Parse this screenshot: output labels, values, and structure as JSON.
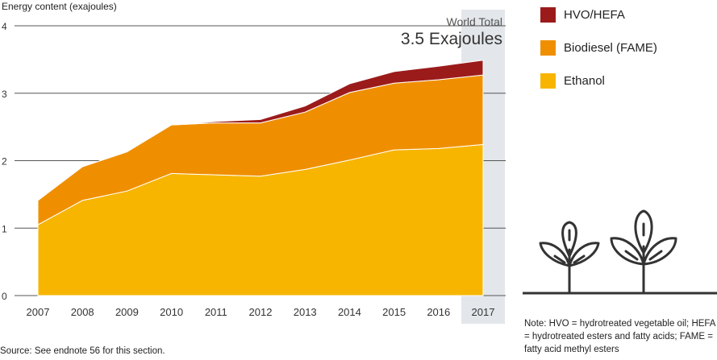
{
  "chart_data": {
    "type": "area",
    "stacked": true,
    "ylabel": "Energy content (exajoules)",
    "xlabel": "",
    "ylim": [
      0,
      4
    ],
    "yticks": [
      "0",
      "1",
      "2",
      "3",
      "4"
    ],
    "grid": true,
    "legend_position": "top-right",
    "categories": [
      "2007",
      "2008",
      "2009",
      "2010",
      "2011",
      "2012",
      "2013",
      "2014",
      "2015",
      "2016",
      "2017"
    ],
    "series": [
      {
        "name": "Ethanol",
        "color": "#f7b500",
        "values": [
          1.05,
          1.41,
          1.55,
          1.81,
          1.79,
          1.77,
          1.87,
          2.01,
          2.16,
          2.18,
          2.24
        ]
      },
      {
        "name": "Biodiesel (FAME)",
        "color": "#ef8f00",
        "values": [
          0.36,
          0.5,
          0.58,
          0.72,
          0.77,
          0.79,
          0.85,
          1.0,
          0.99,
          1.02,
          1.03
        ]
      },
      {
        "name": "HVO/HEFA",
        "color": "#9b1b1b",
        "values": [
          0.0,
          0.0,
          0.0,
          0.0,
          0.02,
          0.05,
          0.09,
          0.13,
          0.17,
          0.2,
          0.22
        ]
      }
    ],
    "highlight": {
      "category": "2017",
      "label": "World Total",
      "value_label": "3.5 Exajoules"
    },
    "legend_order": [
      "HVO/HEFA",
      "Biodiesel (FAME)",
      "Ethanol"
    ]
  },
  "note": "Note: HVO = hydrotreated vegetable oil; HEFA = hydrotreated esters and fatty acids; FAME = fatty acid methyl esters",
  "source": "Source: See endnote 56 for this section.",
  "icon": "plants-icon",
  "colors": {
    "highlight_band": "#e3e6ea",
    "grid": "#555555",
    "axis_text": "#333333"
  }
}
